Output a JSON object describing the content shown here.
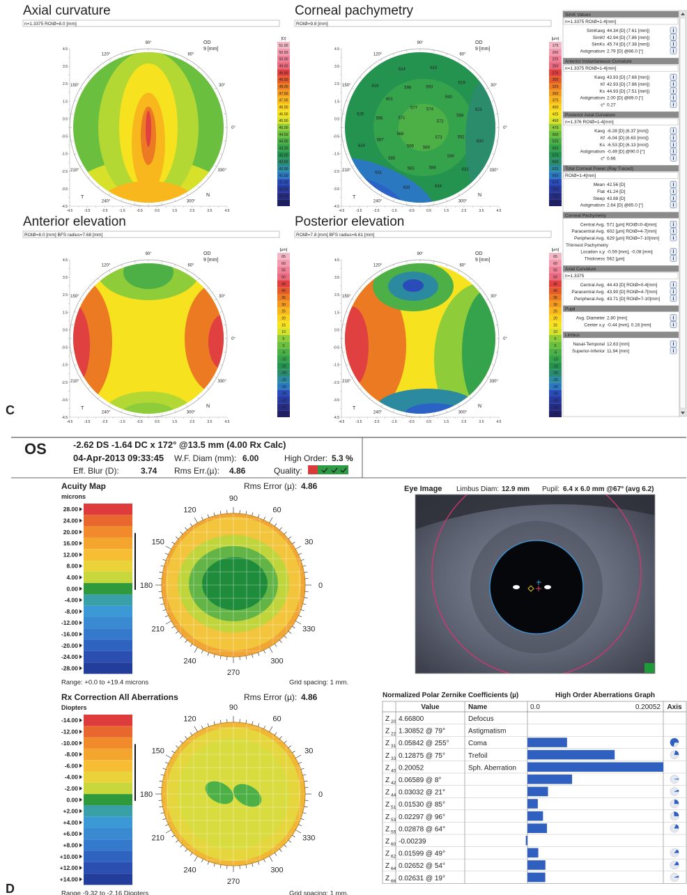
{
  "panel_c": {
    "label": "C",
    "axes": {
      "xlim": [
        -4.5,
        4.5
      ],
      "ylim": [
        -4.5,
        4.5
      ],
      "ticks": [
        -4.5,
        -4,
        -3.5,
        -3,
        -2.5,
        -2,
        -1.5,
        -1,
        -0.5,
        0,
        0.5,
        1,
        1.5,
        2,
        2.5,
        3,
        3.5,
        4,
        4.5
      ]
    },
    "polar_ticks": [
      {
        "value": 90,
        "label": "90°"
      },
      {
        "value": 60,
        "label": "60°"
      },
      {
        "value": 30,
        "label": "30°"
      },
      {
        "value": 0,
        "label": "0°"
      },
      {
        "value": 330,
        "label": "330°"
      },
      {
        "value": 300,
        "label": "300°"
      },
      {
        "value": 240,
        "label": "240°"
      },
      {
        "value": 210,
        "label": "210°"
      },
      {
        "value": 150,
        "label": "150°"
      },
      {
        "value": 120,
        "label": "120°"
      }
    ],
    "labels": {
      "eye": "OD",
      "size": "9 [mm]",
      "temporal": "T",
      "nasal": "N"
    },
    "palette": [
      "#f2b8c6",
      "#f49bb0",
      "#f08098",
      "#ea6a80",
      "#e5525e",
      "#e0403f",
      "#e45a2c",
      "#ec7a22",
      "#f39a1e",
      "#f8b81d",
      "#fad11f",
      "#f6e21f",
      "#d8e12a",
      "#b4d833",
      "#8fcc3a",
      "#6bbf3e",
      "#4cb046",
      "#35a24c",
      "#249350",
      "#2a8c6a",
      "#2c8aa0",
      "#2a78c0",
      "#2a62c6",
      "#2a4cb8",
      "#28399e",
      "#242c84",
      "#1e1f68"
    ],
    "maps": [
      {
        "title": "Axial curvature",
        "subtitle": "n=1.3375 ROIØ=8.0 [mm]",
        "scale": {
          "unit": "[D]",
          "labels": [
            "51.00",
            "50.50",
            "50.00",
            "49.50",
            "49.00",
            "48.50",
            "48.00",
            "47.50",
            "47.00",
            "46.50",
            "46.00",
            "45.50",
            "45.00",
            "44.50",
            "44.00",
            "43.50",
            "43.00",
            "42.50",
            "42.00",
            "41.50",
            "41.00",
            "40.50",
            "40.00",
            "39.50"
          ]
        }
      },
      {
        "title": "Corneal pachymetry",
        "subtitle": "ROIØ=9.8 [mm]",
        "scale": {
          "unit": "[µm]",
          "labels": [
            "175",
            "200",
            "225",
            "250",
            "275",
            "300",
            "325",
            "350",
            "375",
            "400",
            "425",
            "450",
            "475",
            "500",
            "525",
            "550",
            "575",
            "600",
            "625",
            "650",
            "675",
            "700",
            "725",
            "750"
          ]
        },
        "readings": [
          "572",
          "574",
          "577",
          "571",
          "568",
          "566",
          "569",
          "573",
          "588",
          "590",
          "593",
          "598",
          "601",
          "596",
          "587",
          "585",
          "583",
          "586",
          "590",
          "592",
          "621",
          "619",
          "615",
          "614",
          "618",
          "626",
          "624",
          "631",
          "633",
          "634",
          "632",
          "630"
        ]
      },
      {
        "title": "Anterior elevation",
        "subtitle": "ROIØ=8.0 [mm] BFS radius=7.68 [mm]",
        "scale": {
          "unit": "[µm]",
          "labels": [
            "65",
            "60",
            "55",
            "50",
            "45",
            "40",
            "35",
            "30",
            "25",
            "20",
            "15",
            "10",
            "5",
            "0",
            "-5",
            "-10",
            "-15",
            "-20",
            "-25",
            "-30",
            "-35",
            "-40",
            "-45",
            "-50"
          ]
        }
      },
      {
        "title": "Posterior elevation",
        "subtitle": "ROIØ=7.8 [mm] BFS radius=6.61 [mm]",
        "scale": {
          "unit": "[µm]",
          "labels": [
            "65",
            "60",
            "55",
            "50",
            "45",
            "40",
            "35",
            "30",
            "25",
            "20",
            "15",
            "10",
            "5",
            "0",
            "-5",
            "-10",
            "-15",
            "-20",
            "-25",
            "-30",
            "-35",
            "-40",
            "-45",
            "-50"
          ]
        }
      }
    ],
    "side_panel": {
      "info_icon": "i",
      "sections": [
        {
          "header": "SimK Values",
          "sub": "n=1.3375  ROIØ=1-4[mm]",
          "rows": [
            [
              "SimKavg",
              "44.34 [D]  (7.61 [mm])"
            ],
            [
              "SimKf",
              "42.94 [D]  (7.86 [mm])"
            ],
            [
              "SimKs",
              "45.74 [D]  (7.38 [mm])"
            ],
            [
              "Astigmatism",
              "2.79 [D] @86.0 [°]"
            ]
          ]
        },
        {
          "header": "Anterior Instantaneous Curvature",
          "sub": "n=1.3375  ROIØ=1-4[mm]",
          "rows": [
            [
              "Kavg",
              "43.93 [D]  (7.68 [mm])"
            ],
            [
              "Kf",
              "42.93 [D]  (7.86 [mm])"
            ],
            [
              "Ks",
              "44.93 [D]  (7.51 [mm])"
            ],
            [
              "Astigmatism",
              "2.00 [D] @89.0 [°]"
            ],
            [
              "c*",
              "0.27"
            ]
          ]
        },
        {
          "header": "Posterior Axial Curvature",
          "sub": "n=1.376  ROIØ=1-4[mm]",
          "rows": [
            [
              "Kavg",
              "-6.28 [D]  (6.37 [mm])"
            ],
            [
              "Kf",
              "-6.04 [D]  (6.63 [mm])"
            ],
            [
              "Ks",
              "-6.53 [D]  (6.13 [mm])"
            ],
            [
              "Astigmatism",
              "-0.49 [D] @90.0 [°]"
            ],
            [
              "c*",
              "0.66"
            ]
          ]
        },
        {
          "header": "Total Corneal Power (Ray Traced)",
          "sub": "ROIØ=1-4[mm]",
          "rows": [
            [
              "Mean",
              "42.56 [D]"
            ],
            [
              "Flat",
              "41.24 [D]"
            ],
            [
              "Steep",
              "43.88 [D]"
            ],
            [
              "Astigmatism",
              "2.64 [D] @85.0 [°]"
            ]
          ]
        },
        {
          "header": "Corneal Pachymetry",
          "rows": [
            [
              "Central Avg.",
              "571 [µm] ROIØ=0-4[mm]"
            ],
            [
              "Paracentral Avg.",
              "602 [µm] ROIØ=4-7[mm]"
            ],
            [
              "Peripheral Avg.",
              "629 [µm] ROIØ=7-10[mm]"
            ],
            [
              "Thinnest Pachymetry"
            ],
            [
              "Location x,y",
              "-0.59 [mm], -0.08 [mm]"
            ],
            [
              "Thickness",
              "562 [µm]"
            ]
          ]
        },
        {
          "header": "Axial Curvature",
          "sub": "n=1.3375",
          "rows": [
            [
              "Central Avg.",
              "44.43 [D] ROIØ=0-4[mm]"
            ],
            [
              "Paracentral Avg.",
              "43.90 [D] ROIØ=4-7[mm]"
            ],
            [
              "Peripheral Avg.",
              "43.71 [D] ROIØ=7-10[mm]"
            ]
          ]
        },
        {
          "header": "Pupil",
          "rows": [
            [
              "Avg. Diameter",
              "2.80 [mm]"
            ],
            [
              "Center x,y",
              "-0.44 [mm], 0.16 [mm]"
            ]
          ]
        },
        {
          "header": "Limbus",
          "rows": [
            [
              "Nasal-Temporal",
              "12.63 [mm]"
            ],
            [
              "Superior-Inferior",
              "11.94 [mm]"
            ]
          ]
        }
      ]
    }
  },
  "panel_d": {
    "label": "D",
    "header": {
      "eye": "OS",
      "rx": "-2.62 DS -1.64 DC x 172° @13.5 mm (4.00 Rx Calc)",
      "datetime": "04-Apr-2013 09:33:45",
      "wf_diam_label": "W.F. Diam (mm):",
      "wf_diam": "6.00",
      "high_order_label": "High Order:",
      "high_order": "5.3 %",
      "eff_blur_label": "Eff. Blur (D):",
      "eff_blur": "3.74",
      "rms_label": "Rms Err.(µ):",
      "rms": "4.86",
      "quality_label": "Quality:"
    },
    "polar_ticks": [
      90,
      60,
      30,
      0,
      330,
      300,
      270,
      240,
      210,
      180,
      150,
      120
    ],
    "scale_colors": [
      "#de3c3c",
      "#e8672e",
      "#f08a2a",
      "#f4a52e",
      "#f7be35",
      "#e9d23a",
      "#c8d83c",
      "#2e9a3c",
      "#3aa0a8",
      "#3b9ad6",
      "#3a8ad2",
      "#3479cc",
      "#2f63c0",
      "#2a4fb0",
      "#233d9a"
    ],
    "acuity": {
      "title": "Acuity Map",
      "unit": "microns",
      "rms_label": "Rms Error (µ):",
      "rms": "4.86",
      "scale": [
        "28.00",
        "24.00",
        "20.00",
        "16.00",
        "12.00",
        "8.00",
        "4.00",
        "0.00",
        "-4.00",
        "-8.00",
        "-12.00",
        "-16.00",
        "-20.00",
        "-24.00",
        "-28.00"
      ],
      "range": "Range: +0.0 to +19.4 microns",
      "grid": "Grid spacing: 1 mm."
    },
    "rx": {
      "title": "Rx Correction All Aberrations",
      "unit": "Diopters",
      "rms_label": "Rms Error (µ):",
      "rms": "4.86",
      "scale": [
        "-14.00",
        "-12.00",
        "-10.00",
        "-8.00",
        "-6.00",
        "-4.00",
        "-2.00",
        "0.00",
        "+2.00",
        "+4.00",
        "+6.00",
        "+8.00",
        "+10.00",
        "+12.00",
        "+14.00"
      ],
      "range": "Range -9.32 to -2.16 Diopters",
      "grid": "Grid spacing: 1 mm."
    },
    "eye_image": {
      "title": "Eye Image",
      "limbus_label": "Limbus Diam:",
      "limbus": "12.9 mm",
      "pupil_label": "Pupil:",
      "pupil": "6.4 x 6.0 mm @67° (avg 6.2)"
    },
    "zernike": {
      "title": "Normalized Polar Zernike Coefficients (µ)",
      "graph_title": "High Order Aberrations Graph",
      "symbol": "Z",
      "columns": [
        "Value",
        "Name"
      ],
      "axis_header": "Axis",
      "xlim": [
        0,
        0.20052
      ],
      "ticks": [
        {
          "value": 0,
          "label": "0.0"
        },
        0.20052
      ],
      "bar_color": "#2f5fbf",
      "rows": [
        {
          "index": "20",
          "value": 4.668,
          "label": "4.66800",
          "name": "Defocus"
        },
        {
          "index": "22",
          "value": 1.30852,
          "axis": 79,
          "label": "1.30852 @ 79°",
          "name": "Astigmatism"
        },
        {
          "index": "31",
          "value": 0.05842,
          "axis": 255,
          "label": "0.05842 @ 255°",
          "name": "Coma"
        },
        {
          "index": "33",
          "value": 0.12875,
          "axis": 75,
          "label": "0.12875 @ 75°",
          "name": "Trefoil"
        },
        {
          "index": "40",
          "value": 0.20052,
          "label": "0.20052",
          "name": "Sph. Aberration"
        },
        {
          "index": "42",
          "value": 0.06589,
          "axis": 8,
          "label": "0.06589 @  8°"
        },
        {
          "index": "44",
          "value": 0.03032,
          "axis": 21,
          "label": "0.03032 @ 21°"
        },
        {
          "index": "51",
          "value": 0.0153,
          "axis": 85,
          "label": "0.01530 @ 85°"
        },
        {
          "index": "53",
          "value": 0.02297,
          "axis": 96,
          "label": "0.02297 @ 96°"
        },
        {
          "index": "55",
          "value": 0.02878,
          "axis": 64,
          "label": "0.02878 @ 64°"
        },
        {
          "index": "60",
          "value": -0.00239,
          "label": "-0.00239"
        },
        {
          "index": "62",
          "value": 0.01599,
          "axis": 49,
          "label": "0.01599 @ 49°"
        },
        {
          "index": "64",
          "value": 0.02652,
          "axis": 54,
          "label": "0.02652 @ 54°"
        },
        {
          "index": "66",
          "value": 0.02631,
          "axis": 19,
          "label": "0.02631 @ 19°"
        }
      ]
    }
  }
}
